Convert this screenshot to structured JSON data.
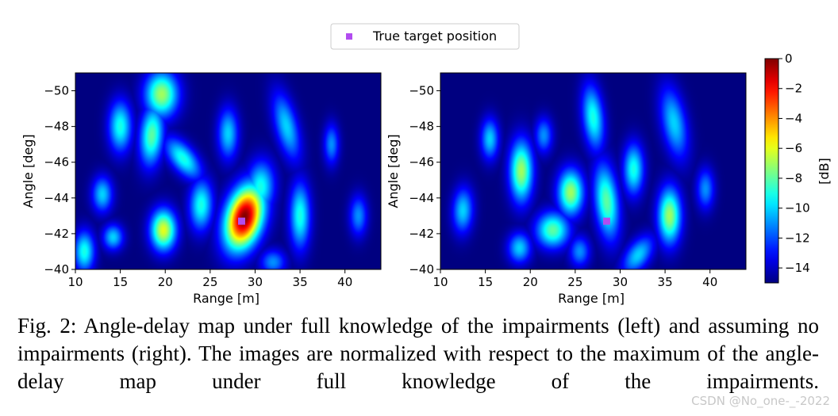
{
  "legend": {
    "label": "True target position",
    "marker_color": "#b24cf0"
  },
  "chart_data": [
    {
      "type": "heatmap",
      "panel": "left",
      "xlabel": "Range [m]",
      "ylabel": "Angle [deg]",
      "xlim": [
        10,
        44
      ],
      "ylim": [
        -51,
        -40
      ],
      "xticks": [
        10,
        15,
        20,
        25,
        30,
        35,
        40
      ],
      "yticks": [
        -50,
        -48,
        -46,
        -44,
        -42,
        -40
      ],
      "background_db": -15,
      "target": {
        "x": 28.5,
        "y": -42.7
      },
      "blobs": [
        {
          "x": 28.8,
          "y": -42.9,
          "sx": 1.6,
          "sy": 1.1,
          "rot": -0.5,
          "peak_db": 0
        },
        {
          "x": 30.6,
          "y": -44.6,
          "sx": 1.1,
          "sy": 1.0,
          "rot": -0.4,
          "peak_db": -9
        },
        {
          "x": 19.6,
          "y": -49.8,
          "sx": 1.3,
          "sy": 0.9,
          "rot": 0.0,
          "peak_db": -7
        },
        {
          "x": 18.5,
          "y": -47.5,
          "sx": 0.9,
          "sy": 1.2,
          "rot": 0.3,
          "peak_db": -8
        },
        {
          "x": 15.0,
          "y": -48.0,
          "sx": 0.9,
          "sy": 1.0,
          "rot": 0.0,
          "peak_db": -9
        },
        {
          "x": 22.0,
          "y": -46.2,
          "sx": 1.5,
          "sy": 0.6,
          "rot": 0.4,
          "peak_db": -9
        },
        {
          "x": 24.0,
          "y": -43.6,
          "sx": 0.9,
          "sy": 1.0,
          "rot": 0.3,
          "peak_db": -9
        },
        {
          "x": 19.8,
          "y": -42.2,
          "sx": 1.0,
          "sy": 0.8,
          "rot": 0.0,
          "peak_db": -6
        },
        {
          "x": 13.0,
          "y": -44.2,
          "sx": 0.8,
          "sy": 0.7,
          "rot": 0.0,
          "peak_db": -10
        },
        {
          "x": 14.2,
          "y": -41.8,
          "sx": 0.8,
          "sy": 0.5,
          "rot": 0.0,
          "peak_db": -10
        },
        {
          "x": 11.0,
          "y": -41.0,
          "sx": 0.8,
          "sy": 0.8,
          "rot": 0.0,
          "peak_db": -9
        },
        {
          "x": 35.0,
          "y": -43.0,
          "sx": 0.8,
          "sy": 1.3,
          "rot": 0.0,
          "peak_db": -9
        },
        {
          "x": 33.5,
          "y": -48.0,
          "sx": 0.8,
          "sy": 1.5,
          "rot": -0.6,
          "peak_db": -10
        },
        {
          "x": 27.0,
          "y": -47.6,
          "sx": 0.8,
          "sy": 1.0,
          "rot": 0.0,
          "peak_db": -10
        },
        {
          "x": 38.5,
          "y": -47.0,
          "sx": 0.6,
          "sy": 0.8,
          "rot": 0.0,
          "peak_db": -11
        },
        {
          "x": 41.5,
          "y": -43.0,
          "sx": 0.7,
          "sy": 0.8,
          "rot": 0.0,
          "peak_db": -11
        },
        {
          "x": 32.0,
          "y": -40.4,
          "sx": 1.0,
          "sy": 0.5,
          "rot": 0.0,
          "peak_db": -11
        }
      ]
    },
    {
      "type": "heatmap",
      "panel": "right",
      "xlabel": "Range [m]",
      "ylabel": "Angle [deg]",
      "xlim": [
        10,
        44
      ],
      "ylim": [
        -51,
        -40
      ],
      "xticks": [
        10,
        15,
        20,
        25,
        30,
        35,
        40
      ],
      "yticks": [
        -50,
        -48,
        -46,
        -44,
        -42,
        -40
      ],
      "background_db": -15,
      "target": {
        "x": 28.5,
        "y": -42.7
      },
      "blobs": [
        {
          "x": 28.5,
          "y": -43.8,
          "sx": 0.9,
          "sy": 1.5,
          "rot": -0.3,
          "peak_db": -8
        },
        {
          "x": 19.0,
          "y": -45.5,
          "sx": 0.9,
          "sy": 1.2,
          "rot": 0.0,
          "peak_db": -7
        },
        {
          "x": 24.5,
          "y": -44.3,
          "sx": 1.0,
          "sy": 0.9,
          "rot": 0.0,
          "peak_db": -7
        },
        {
          "x": 35.5,
          "y": -43.0,
          "sx": 0.9,
          "sy": 1.1,
          "rot": 0.0,
          "peak_db": -7
        },
        {
          "x": 22.5,
          "y": -42.2,
          "sx": 1.3,
          "sy": 0.7,
          "rot": 0.0,
          "peak_db": -8
        },
        {
          "x": 31.5,
          "y": -45.6,
          "sx": 0.8,
          "sy": 1.0,
          "rot": 0.0,
          "peak_db": -9
        },
        {
          "x": 27.0,
          "y": -48.5,
          "sx": 0.8,
          "sy": 1.3,
          "rot": -0.3,
          "peak_db": -9
        },
        {
          "x": 15.5,
          "y": -47.3,
          "sx": 0.7,
          "sy": 0.8,
          "rot": 0.0,
          "peak_db": -10
        },
        {
          "x": 12.5,
          "y": -43.3,
          "sx": 0.8,
          "sy": 0.9,
          "rot": 0.3,
          "peak_db": -10
        },
        {
          "x": 36.0,
          "y": -48.2,
          "sx": 0.9,
          "sy": 1.5,
          "rot": -0.5,
          "peak_db": -10
        },
        {
          "x": 21.5,
          "y": -47.5,
          "sx": 0.7,
          "sy": 0.7,
          "rot": 0.0,
          "peak_db": -11
        },
        {
          "x": 18.8,
          "y": -41.2,
          "sx": 0.9,
          "sy": 0.6,
          "rot": 0.0,
          "peak_db": -10
        },
        {
          "x": 32.0,
          "y": -40.8,
          "sx": 1.3,
          "sy": 0.6,
          "rot": -0.4,
          "peak_db": -10
        },
        {
          "x": 39.5,
          "y": -44.5,
          "sx": 0.7,
          "sy": 0.8,
          "rot": 0.0,
          "peak_db": -11
        },
        {
          "x": 25.5,
          "y": -41.0,
          "sx": 0.8,
          "sy": 0.6,
          "rot": 0.0,
          "peak_db": -11
        }
      ]
    }
  ],
  "colorbar": {
    "label": "[dB]",
    "range": [
      -15,
      0
    ],
    "ticks": [
      0,
      -2,
      -4,
      -6,
      -8,
      -10,
      -12,
      -14
    ],
    "tick_labels": [
      "0",
      "−2",
      "−4",
      "−6",
      "−8",
      "−10",
      "−12",
      "−14"
    ]
  },
  "caption": "Fig. 2: Angle-delay map under full knowledge of the impairments (left) and assuming no impairments (right). The images are normalized with respect to the maximum of the angle-delay map under full knowledge of the impairments.",
  "watermark": "CSDN @No_one-_-2022"
}
